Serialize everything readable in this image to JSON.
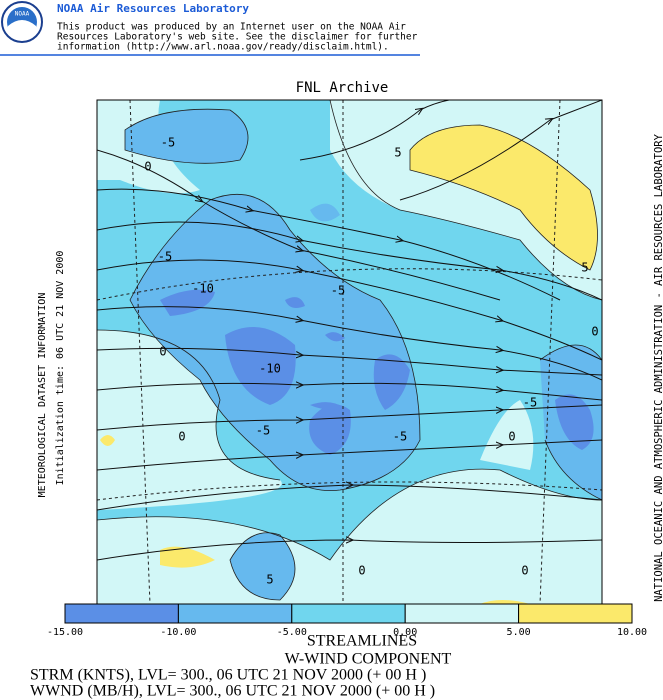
{
  "header": {
    "logo": "NOAA",
    "title": "NOAA Air Resources Laboratory",
    "disclaimer": [
      "This product was produced by an Internet user on the NOAA Air",
      "Resources Laboratory's web site.  See the disclaimer for further",
      "information (http://www.arl.noaa.gov/ready/disclaim.html)."
    ]
  },
  "map": {
    "title": "FNL Archive",
    "left_labels": [
      "METEOROLOGICAL DATASET INFORMATION",
      "Initialization time: 06 UTC 21 NOV 2000"
    ],
    "right_label": "NATIONAL OCEANIC AND ATMOSPHERIC ADMINISTRATION - AIR RESOURCES LABORATORY",
    "contour_labels": [
      "-5",
      "0",
      "5",
      "-5",
      "-10",
      "-5",
      "0",
      "-10",
      "0",
      "-5",
      "0",
      "-5",
      "-5",
      "0",
      "5",
      "5",
      "0",
      "0"
    ]
  },
  "colorbar": {
    "colors": [
      "#5b8fe6",
      "#66b9ee",
      "#70d6ee",
      "#d2f7f7",
      "#fbe96b"
    ],
    "labels": [
      "-15.00",
      "-10.00",
      "-5.00",
      "0.00",
      "5.00",
      "10.00"
    ]
  },
  "footer": {
    "lines": [
      "STREAMLINES",
      "W-WIND COMPONENT"
    ],
    "params": [
      "STRM (KNTS),  LVL= 300., 06 UTC 21 NOV 2000 (+ 00 H )",
      "WWND (MB/H),  LVL= 300., 06 UTC 21 NOV 2000 (+ 00 H )"
    ]
  }
}
